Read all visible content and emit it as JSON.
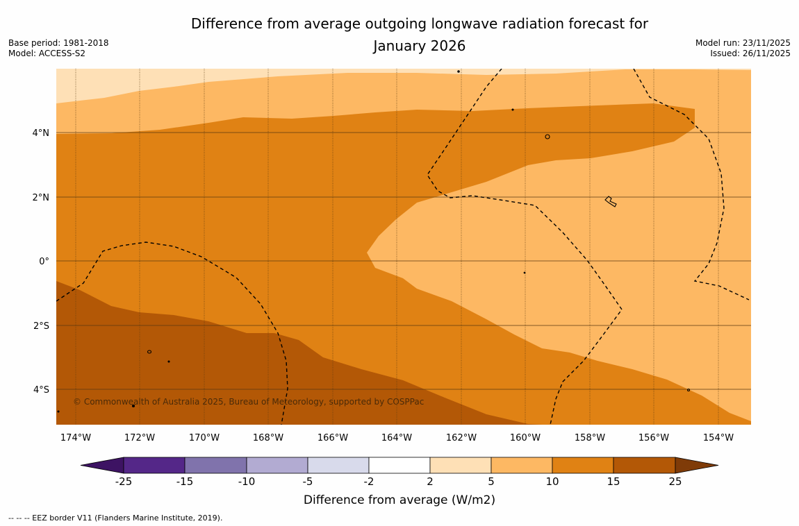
{
  "title_line1": "Difference from average outgoing longwave radiation forecast for",
  "title_line2": "January 2026",
  "base_period": "Base period: 1981-2018",
  "model": "Model: ACCESS-S2",
  "model_run": "Model run: 23/11/2025",
  "issued": "Issued: 26/11/2025",
  "copyright": "© Commonwealth of Australia 2025, Bureau of Meteorology, supported by COSPPac",
  "footnote": "--  --  -- EEZ border V11 (Flanders Marine Institute, 2019).",
  "lon_ticks": [
    "174°W",
    "172°W",
    "170°W",
    "168°W",
    "166°W",
    "164°W",
    "162°W",
    "160°W",
    "158°W",
    "156°W",
    "154°W"
  ],
  "lat_ticks": [
    "4°N",
    "2°N",
    "0°",
    "2°S",
    "4°S"
  ],
  "colorbar": {
    "label": "Difference from average (W/m2)",
    "ticks": [
      "-25",
      "-15",
      "-10",
      "-5",
      "-2",
      "2",
      "5",
      "10",
      "15",
      "25"
    ],
    "colors": [
      "#3d1363",
      "#542788",
      "#8073ac",
      "#b2abd2",
      "#d8daeb",
      "#ffffff",
      "#fee0b6",
      "#fdb863",
      "#e08214",
      "#b35806",
      "#7f3b08"
    ]
  },
  "map_colors": {
    "band_2_5": "#fee0b6",
    "band_5_10": "#fdb863",
    "band_10_15": "#e08214",
    "band_15_25": "#b35806",
    "gridline": "#5a3a10"
  }
}
